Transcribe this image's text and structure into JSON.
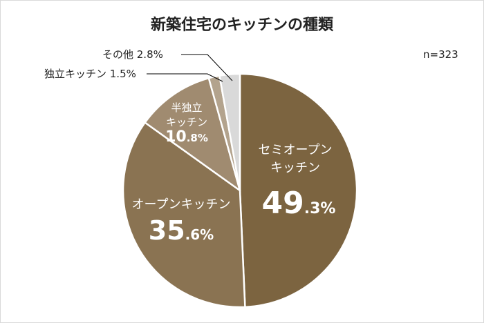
{
  "chart_data": {
    "type": "pie",
    "title": "新築住宅のキッチンの種類",
    "note": "n=323",
    "colors": [
      "#7c6440",
      "#8a7352",
      "#a08b70",
      "#b3a38d",
      "#d9d9d9"
    ],
    "slices": [
      {
        "line1": "セミオープン",
        "line2": "キッチン",
        "value_main": "49",
        "value_dec": ".3%",
        "value": 49.3
      },
      {
        "line1": "オープンキッチン",
        "line2": "",
        "value_main": "35",
        "value_dec": ".6%",
        "value": 35.6
      },
      {
        "line1": "半独立",
        "line2": "キッチン",
        "value_main": "10",
        "value_dec": ".8%",
        "value": 10.8
      },
      {
        "label_text": "独立キッチン 1.5%",
        "value": 1.5
      },
      {
        "label_text": "その他 2.8%",
        "value": 2.8
      }
    ]
  }
}
